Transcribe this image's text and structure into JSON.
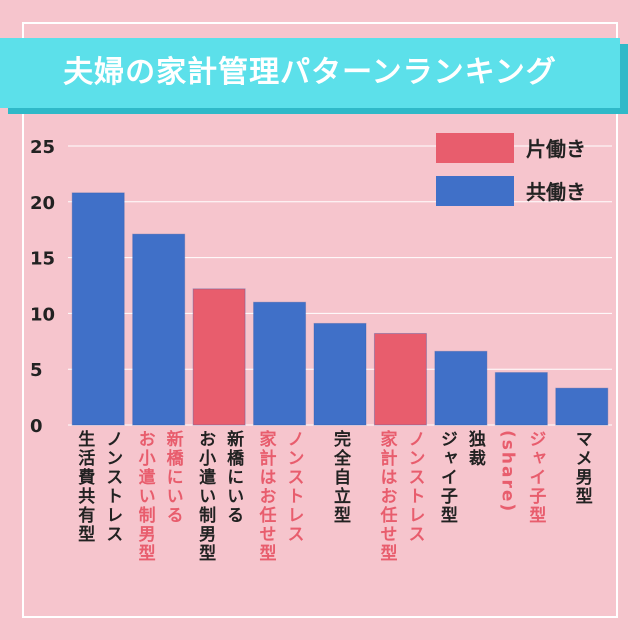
{
  "title": "夫婦の家計管理パターンランキング",
  "colors": {
    "background": "#f6c5cd",
    "banner": "#5ce0ea",
    "banner_shadow": "#2fb9c8",
    "single_income": "#e85d6d",
    "dual_income": "#4070c8",
    "axis_text": "#222222",
    "red_label": "#e85d6d"
  },
  "chart_data": {
    "type": "bar",
    "title": "夫婦の家計管理パターンランキング",
    "xlabel": "",
    "ylabel": "",
    "ylim": [
      0,
      25
    ],
    "yticks": [
      "0",
      "5",
      "10",
      "15",
      "20",
      "25"
    ],
    "ytick_values": [
      0,
      5,
      10,
      15,
      20,
      25
    ],
    "grid": true,
    "legend_position": "top-right",
    "legend": [
      {
        "name": "片働き",
        "color": "#e85d6d"
      },
      {
        "name": "共働き",
        "color": "#4070c8"
      }
    ],
    "categories": [
      [
        "ノンストレス",
        "生活費共有型"
      ],
      [
        "新橋にいる",
        "お小遣い制男型"
      ],
      [
        "新橋にいる",
        "お小遣い制男型"
      ],
      [
        "ノンストレス",
        "家計はお任せ型"
      ],
      [
        "完全自立型"
      ],
      [
        "ノンストレス",
        "家計はお任せ型"
      ],
      [
        "独裁",
        "ジャイ子型"
      ],
      [
        "ジャイ子型",
        "(share)"
      ],
      [
        "マメ男型"
      ]
    ],
    "values": [
      20.8,
      17.1,
      12.2,
      11.0,
      9.1,
      8.2,
      6.6,
      4.7,
      3.3
    ],
    "bar_group": [
      "共働き",
      "共働き",
      "片働き",
      "共働き",
      "共働き",
      "片働き",
      "共働き",
      "共働き",
      "共働き"
    ],
    "label_style": [
      "blue",
      "red",
      "blue",
      "red",
      "blue",
      "red",
      "blue",
      "red",
      "blue"
    ]
  }
}
